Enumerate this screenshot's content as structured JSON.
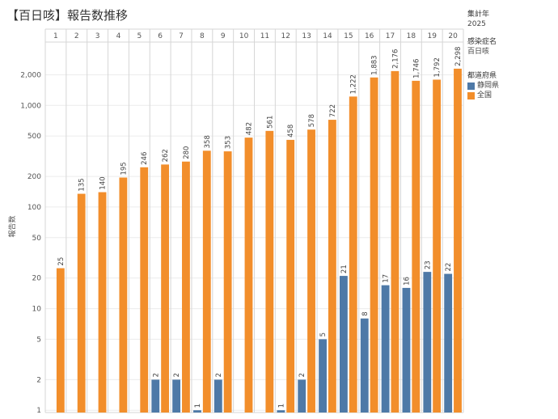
{
  "title": "【百日咳】報告数推移",
  "filters": {
    "year_label": "集計年",
    "year_value": "2025",
    "disease_label": "感染症名",
    "disease_value": "百日咳"
  },
  "colors": {
    "shizuoka": "#4e79a7",
    "national": "#f28e2b",
    "grid": "#ececec",
    "divider": "#d6d6d6",
    "text": "#555555"
  },
  "chart_data": {
    "type": "bar",
    "title": "【百日咳】報告数推移",
    "xlabel": "",
    "ylabel": "報告数",
    "y_scale": "log",
    "ylim": [
      0.95,
      4200
    ],
    "y_ticks": [
      1,
      2,
      5,
      10,
      20,
      50,
      100,
      200,
      500,
      1000,
      2000
    ],
    "y_tick_labels": [
      "1",
      "2",
      "5",
      "10",
      "20",
      "50",
      "100",
      "200",
      "500",
      "1,000",
      "2,000"
    ],
    "categories": [
      "1",
      "2",
      "3",
      "4",
      "5",
      "6",
      "7",
      "8",
      "9",
      "10",
      "11",
      "12",
      "13",
      "14",
      "15",
      "16",
      "17",
      "18",
      "19",
      "20"
    ],
    "legend": {
      "title": "都道府県",
      "placement": "right"
    },
    "series": [
      {
        "name": "静岡県",
        "color": "#4e79a7",
        "values": [
          null,
          null,
          null,
          null,
          null,
          2,
          2,
          1,
          2,
          null,
          null,
          1,
          2,
          5,
          21,
          8,
          17,
          16,
          23,
          22
        ],
        "labels": [
          null,
          null,
          null,
          null,
          null,
          "2",
          "2",
          "1",
          "2",
          null,
          null,
          "1",
          "2",
          "5",
          "21",
          "8",
          "17",
          "16",
          "23",
          "22"
        ]
      },
      {
        "name": "全国",
        "color": "#f28e2b",
        "values": [
          25,
          135,
          140,
          195,
          246,
          262,
          280,
          358,
          353,
          482,
          561,
          458,
          578,
          722,
          1222,
          1883,
          2176,
          1746,
          1792,
          2298
        ],
        "labels": [
          "25",
          "135",
          "140",
          "195",
          "246",
          "262",
          "280",
          "358",
          "353",
          "482",
          "561",
          "458",
          "578",
          "722",
          "1,222",
          "1,883",
          "2,176",
          "1,746",
          "1,792",
          "2,298"
        ]
      }
    ]
  }
}
